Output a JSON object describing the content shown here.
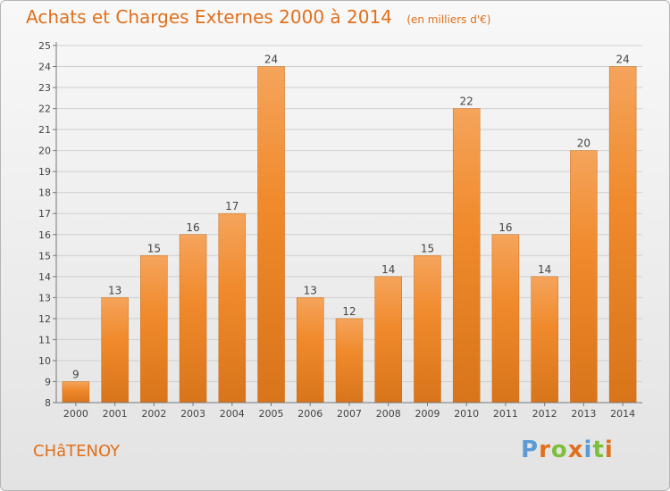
{
  "header": {
    "title": "Achats et Charges Externes 2000 à 2014",
    "subtitle": "(en milliers d'€)"
  },
  "footer": {
    "commune": "CHâTENOY",
    "logo_letters": [
      "P",
      "r",
      "o",
      "x",
      "i",
      "t",
      "i"
    ]
  },
  "colors": {
    "bar": "#f08a2c",
    "bar_top": "#f5a45c",
    "bar_bottom": "#d8741a",
    "title": "#e0701c",
    "logo": [
      "#5b9bd5",
      "#e0701c",
      "#7bbf3a",
      "#e0701c",
      "#5b9bd5",
      "#7bbf3a",
      "#e0701c"
    ]
  },
  "chart_data": {
    "type": "bar",
    "categories": [
      "2000",
      "2001",
      "2002",
      "2003",
      "2004",
      "2005",
      "2006",
      "2007",
      "2008",
      "2009",
      "2010",
      "2011",
      "2012",
      "2013",
      "2014"
    ],
    "values": [
      9,
      13,
      15,
      16,
      17,
      24,
      13,
      12,
      14,
      15,
      22,
      16,
      14,
      20,
      24
    ],
    "data_labels": [
      "9",
      "13",
      "15",
      "16",
      "17",
      "24",
      "13",
      "12",
      "14",
      "15",
      "22",
      "16",
      "14",
      "20",
      "24"
    ],
    "title": "Achats et Charges Externes 2000 à 2014",
    "xlabel": "",
    "ylabel": "",
    "ylim": [
      8,
      25
    ],
    "yticks": [
      8,
      9,
      10,
      11,
      12,
      13,
      14,
      15,
      16,
      17,
      18,
      19,
      20,
      21,
      22,
      23,
      24,
      25
    ],
    "grid": true
  }
}
